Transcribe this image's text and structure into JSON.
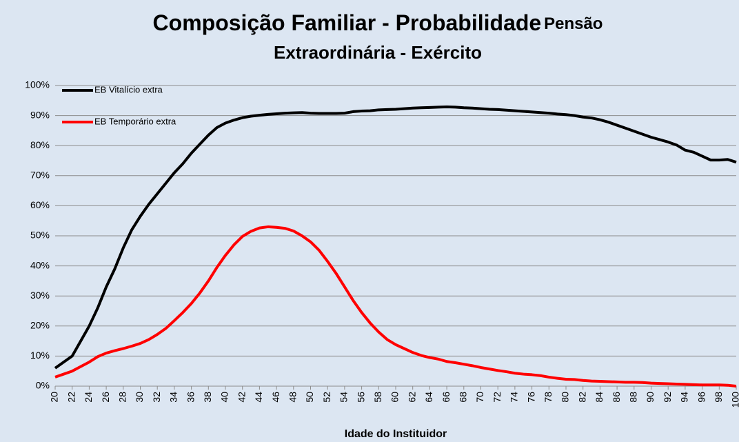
{
  "chart_data": {
    "type": "line",
    "title": [
      "Composição Familiar - Probabilidade",
      "Pensão",
      "Extraordinária - Exército"
    ],
    "x_label": "Idade do Instituidor",
    "x": [
      20,
      21,
      22,
      23,
      24,
      25,
      26,
      27,
      28,
      29,
      30,
      31,
      32,
      33,
      34,
      35,
      36,
      37,
      38,
      39,
      40,
      41,
      42,
      43,
      44,
      45,
      46,
      47,
      48,
      49,
      50,
      51,
      52,
      53,
      54,
      55,
      56,
      57,
      58,
      59,
      60,
      61,
      62,
      63,
      64,
      65,
      66,
      67,
      68,
      69,
      70,
      71,
      72,
      73,
      74,
      75,
      76,
      77,
      78,
      79,
      80,
      81,
      82,
      83,
      84,
      85,
      86,
      87,
      88,
      89,
      90,
      91,
      92,
      93,
      94,
      95,
      96,
      97,
      98,
      99,
      100
    ],
    "series": [
      {
        "name": "EB Vitalício extra",
        "color": "#000000",
        "values": [
          6,
          8,
          10,
          15,
          20,
          26,
          33,
          39,
          46,
          52,
          56.5,
          60.5,
          64,
          67.5,
          71,
          74,
          77.5,
          80.5,
          83.5,
          86,
          87.5,
          88.5,
          89.3,
          89.8,
          90.1,
          90.4,
          90.6,
          90.8,
          90.9,
          91,
          90.8,
          90.7,
          90.7,
          90.7,
          90.8,
          91.3,
          91.5,
          91.6,
          91.9,
          92,
          92.1,
          92.3,
          92.5,
          92.6,
          92.7,
          92.8,
          92.9,
          92.8,
          92.6,
          92.5,
          92.3,
          92.1,
          92,
          91.8,
          91.6,
          91.4,
          91.2,
          91,
          90.8,
          90.5,
          90.3,
          90,
          89.5,
          89.2,
          88.6,
          87.8,
          86.8,
          85.8,
          84.8,
          83.8,
          82.8,
          82,
          81.2,
          80.2,
          78.5,
          77.8,
          76.5,
          75.2,
          75.2,
          75.4,
          74.5
        ]
      },
      {
        "name": "EB Temporário extra",
        "color": "#ff0000",
        "values": [
          3,
          4,
          5,
          6.5,
          8,
          9.8,
          11,
          11.8,
          12.5,
          13.3,
          14.2,
          15.5,
          17.2,
          19.2,
          21.8,
          24.5,
          27.5,
          31,
          35,
          39.5,
          43.5,
          47,
          49.8,
          51.5,
          52.6,
          53,
          52.8,
          52.5,
          51.6,
          50,
          48,
          45.2,
          41.5,
          37.5,
          33,
          28.5,
          24.5,
          21,
          18,
          15.5,
          13.8,
          12.5,
          11.2,
          10.2,
          9.5,
          9,
          8.2,
          7.8,
          7.3,
          6.8,
          6.2,
          5.7,
          5.2,
          4.8,
          4.3,
          4,
          3.8,
          3.5,
          3,
          2.6,
          2.3,
          2.2,
          1.9,
          1.7,
          1.6,
          1.5,
          1.4,
          1.3,
          1.3,
          1.2,
          1,
          0.9,
          0.8,
          0.7,
          0.6,
          0.5,
          0.4,
          0.4,
          0.4,
          0.3,
          0
        ]
      }
    ],
    "xlim": [
      20,
      100
    ],
    "xticks": [
      20,
      22,
      24,
      26,
      28,
      30,
      32,
      34,
      36,
      38,
      40,
      42,
      44,
      46,
      48,
      50,
      52,
      54,
      56,
      58,
      60,
      62,
      64,
      66,
      68,
      70,
      72,
      74,
      76,
      78,
      80,
      82,
      84,
      86,
      88,
      90,
      92,
      94,
      96,
      98,
      100
    ],
    "ylim": [
      0,
      100
    ],
    "yticks": [
      {
        "value": 0,
        "label": "0%"
      },
      {
        "value": 10,
        "label": "10%"
      },
      {
        "value": 20,
        "label": "20%"
      },
      {
        "value": 30,
        "label": "30%"
      },
      {
        "value": 40,
        "label": "40%"
      },
      {
        "value": 50,
        "label": "50%"
      },
      {
        "value": 60,
        "label": "60%"
      },
      {
        "value": 70,
        "label": "70%"
      },
      {
        "value": 80,
        "label": "80%"
      },
      {
        "value": 90,
        "label": "90%"
      },
      {
        "value": 100,
        "label": "100%"
      }
    ],
    "grid": true,
    "legend": "top-left",
    "background": "#dce6f2"
  }
}
